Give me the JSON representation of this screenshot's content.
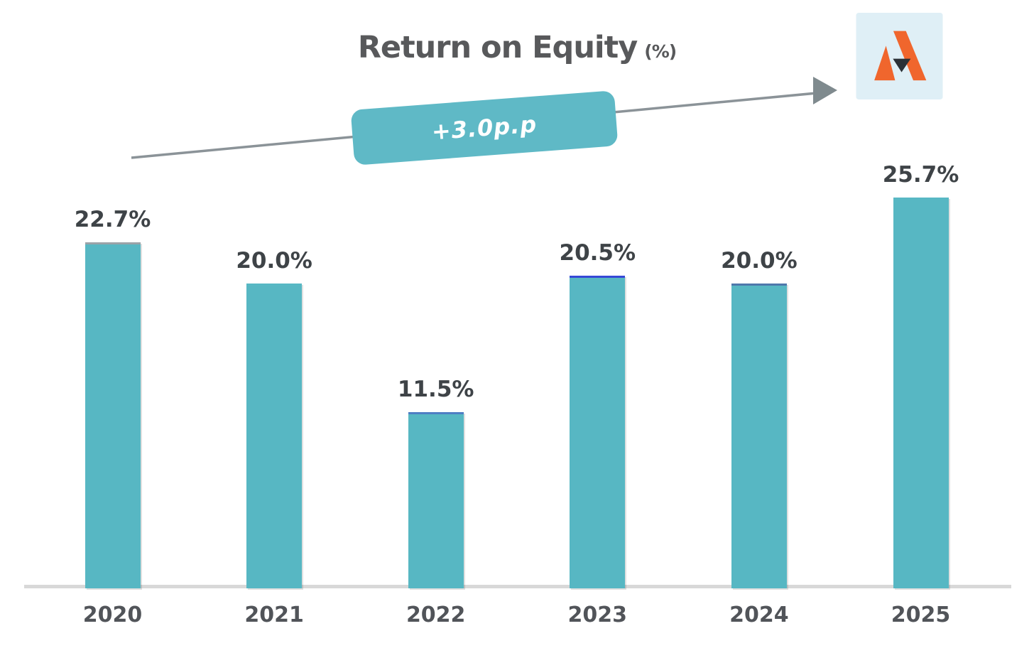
{
  "title": {
    "main": "Return on Equity",
    "unit": "(%)"
  },
  "annotation": {
    "label": "+3.0p.p"
  },
  "logo": {
    "icon": "a-mark-logo"
  },
  "colors": {
    "bar": "#57b7c3",
    "annotation_bg": "#5fb9c6",
    "arrow": "#8b9398",
    "arrowhead": "#7f8a8e",
    "axis": "#d8d8d8",
    "title_text": "#58595b",
    "value_label_text": "#3e4347",
    "tick_label_text": "#515459",
    "logo_bg": "#dfeff6",
    "logo_orange": "#f0662d",
    "logo_dark": "#2b3137"
  },
  "chart_data": {
    "type": "bar",
    "title": "Return on Equity (%)",
    "categories": [
      "2020",
      "2021",
      "2022",
      "2023",
      "2024",
      "2025"
    ],
    "values": [
      22.7,
      20.0,
      11.5,
      20.5,
      20.0,
      25.7
    ],
    "labels": [
      "22.7%",
      "20.0%",
      "11.5%",
      "20.5%",
      "20.0%",
      "25.7%"
    ],
    "bar_top_edge_colors": [
      "#9aa3a8",
      "#58b8c4",
      "#4f7fc4",
      "#3648d6",
      "#4f78ab",
      "#58b8c4"
    ],
    "annotation": "+3.0p.p",
    "xlabel": "",
    "ylabel": "",
    "ylim": [
      0,
      30
    ],
    "grid": false,
    "legend": false,
    "data_labels": true
  }
}
